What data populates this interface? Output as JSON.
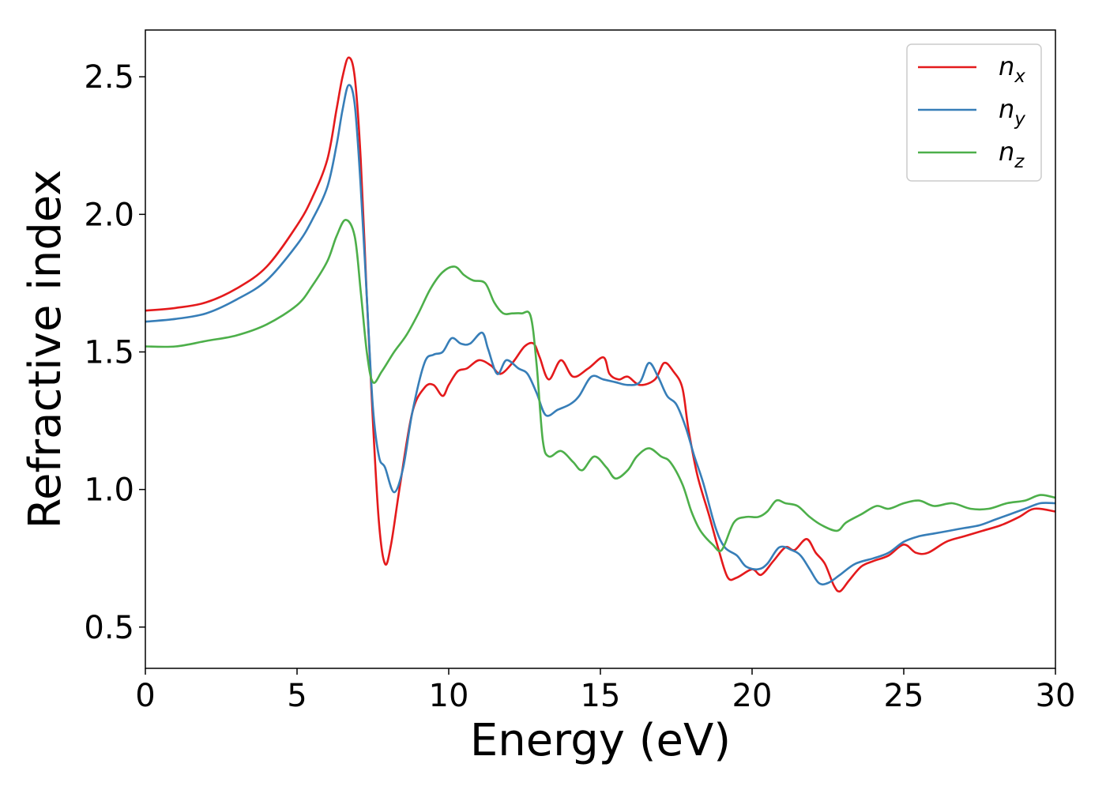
{
  "chart_data": {
    "type": "line",
    "xlabel": "Energy (eV)",
    "ylabel": "Refractive index",
    "xlim": [
      0,
      30
    ],
    "ylim": [
      0.35,
      2.67
    ],
    "xticks": [
      0,
      5,
      10,
      15,
      20,
      25,
      30
    ],
    "xtick_labels": [
      "0",
      "5",
      "10",
      "15",
      "20",
      "25",
      "30"
    ],
    "yticks": [
      0.5,
      1.0,
      1.5,
      2.0,
      2.5
    ],
    "ytick_labels": [
      "0.5",
      "1.0",
      "1.5",
      "2.0",
      "2.5"
    ],
    "grid": false,
    "legend_position": "top-right",
    "series": [
      {
        "name": "n",
        "subscript": "x",
        "color": "#e41a1c",
        "points": [
          [
            0,
            1.65
          ],
          [
            1,
            1.66
          ],
          [
            2,
            1.68
          ],
          [
            3,
            1.73
          ],
          [
            4,
            1.81
          ],
          [
            5,
            1.96
          ],
          [
            5.5,
            2.06
          ],
          [
            6,
            2.2
          ],
          [
            6.3,
            2.38
          ],
          [
            6.5,
            2.5
          ],
          [
            6.7,
            2.57
          ],
          [
            6.9,
            2.5
          ],
          [
            7.1,
            2.2
          ],
          [
            7.3,
            1.7
          ],
          [
            7.5,
            1.25
          ],
          [
            7.7,
            0.88
          ],
          [
            7.9,
            0.73
          ],
          [
            8.1,
            0.8
          ],
          [
            8.4,
            1.02
          ],
          [
            8.8,
            1.28
          ],
          [
            9.2,
            1.37
          ],
          [
            9.5,
            1.38
          ],
          [
            9.8,
            1.34
          ],
          [
            10,
            1.38
          ],
          [
            10.3,
            1.43
          ],
          [
            10.6,
            1.44
          ],
          [
            11,
            1.47
          ],
          [
            11.4,
            1.45
          ],
          [
            11.7,
            1.42
          ],
          [
            12.1,
            1.46
          ],
          [
            12.5,
            1.52
          ],
          [
            12.8,
            1.53
          ],
          [
            13,
            1.48
          ],
          [
            13.3,
            1.4
          ],
          [
            13.7,
            1.47
          ],
          [
            14.1,
            1.41
          ],
          [
            14.6,
            1.44
          ],
          [
            15.1,
            1.48
          ],
          [
            15.3,
            1.42
          ],
          [
            15.6,
            1.4
          ],
          [
            15.9,
            1.41
          ],
          [
            16.3,
            1.38
          ],
          [
            16.8,
            1.4
          ],
          [
            17.1,
            1.46
          ],
          [
            17.4,
            1.43
          ],
          [
            17.7,
            1.37
          ],
          [
            17.9,
            1.22
          ],
          [
            18.2,
            1.05
          ],
          [
            18.6,
            0.9
          ],
          [
            18.9,
            0.78
          ],
          [
            19.2,
            0.68
          ],
          [
            19.5,
            0.68
          ],
          [
            20,
            0.71
          ],
          [
            20.3,
            0.69
          ],
          [
            20.7,
            0.74
          ],
          [
            21.1,
            0.79
          ],
          [
            21.4,
            0.78
          ],
          [
            21.8,
            0.82
          ],
          [
            22.1,
            0.77
          ],
          [
            22.4,
            0.73
          ],
          [
            22.7,
            0.65
          ],
          [
            22.9,
            0.63
          ],
          [
            23.2,
            0.67
          ],
          [
            23.6,
            0.72
          ],
          [
            24,
            0.74
          ],
          [
            24.5,
            0.76
          ],
          [
            25,
            0.8
          ],
          [
            25.4,
            0.77
          ],
          [
            25.8,
            0.77
          ],
          [
            26.4,
            0.81
          ],
          [
            27,
            0.83
          ],
          [
            27.6,
            0.85
          ],
          [
            28.2,
            0.87
          ],
          [
            28.8,
            0.9
          ],
          [
            29.3,
            0.93
          ],
          [
            30,
            0.92
          ]
        ]
      },
      {
        "name": "n",
        "subscript": "y",
        "color": "#377eb8",
        "points": [
          [
            0,
            1.61
          ],
          [
            1,
            1.62
          ],
          [
            2,
            1.64
          ],
          [
            3,
            1.69
          ],
          [
            4,
            1.76
          ],
          [
            5,
            1.89
          ],
          [
            5.5,
            1.98
          ],
          [
            6,
            2.1
          ],
          [
            6.3,
            2.25
          ],
          [
            6.5,
            2.38
          ],
          [
            6.7,
            2.47
          ],
          [
            6.9,
            2.4
          ],
          [
            7.1,
            2.1
          ],
          [
            7.3,
            1.7
          ],
          [
            7.5,
            1.3
          ],
          [
            7.7,
            1.12
          ],
          [
            7.9,
            1.08
          ],
          [
            8.2,
            0.99
          ],
          [
            8.5,
            1.08
          ],
          [
            8.8,
            1.28
          ],
          [
            9.2,
            1.46
          ],
          [
            9.5,
            1.49
          ],
          [
            9.8,
            1.5
          ],
          [
            10.1,
            1.55
          ],
          [
            10.4,
            1.53
          ],
          [
            10.7,
            1.53
          ],
          [
            11.1,
            1.57
          ],
          [
            11.3,
            1.51
          ],
          [
            11.6,
            1.42
          ],
          [
            11.9,
            1.47
          ],
          [
            12.3,
            1.44
          ],
          [
            12.6,
            1.42
          ],
          [
            12.9,
            1.35
          ],
          [
            13.2,
            1.27
          ],
          [
            13.6,
            1.29
          ],
          [
            14,
            1.31
          ],
          [
            14.3,
            1.34
          ],
          [
            14.7,
            1.41
          ],
          [
            15.1,
            1.4
          ],
          [
            15.5,
            1.39
          ],
          [
            15.9,
            1.38
          ],
          [
            16.3,
            1.39
          ],
          [
            16.6,
            1.46
          ],
          [
            16.9,
            1.41
          ],
          [
            17.2,
            1.34
          ],
          [
            17.5,
            1.31
          ],
          [
            17.8,
            1.23
          ],
          [
            18.1,
            1.12
          ],
          [
            18.4,
            1.02
          ],
          [
            18.8,
            0.86
          ],
          [
            19.1,
            0.79
          ],
          [
            19.5,
            0.76
          ],
          [
            19.8,
            0.72
          ],
          [
            20.2,
            0.71
          ],
          [
            20.5,
            0.73
          ],
          [
            20.9,
            0.79
          ],
          [
            21.3,
            0.78
          ],
          [
            21.6,
            0.76
          ],
          [
            21.9,
            0.71
          ],
          [
            22.2,
            0.66
          ],
          [
            22.5,
            0.66
          ],
          [
            22.9,
            0.69
          ],
          [
            23.4,
            0.73
          ],
          [
            24,
            0.75
          ],
          [
            24.5,
            0.77
          ],
          [
            25,
            0.81
          ],
          [
            25.5,
            0.83
          ],
          [
            26,
            0.84
          ],
          [
            26.5,
            0.85
          ],
          [
            27,
            0.86
          ],
          [
            27.5,
            0.87
          ],
          [
            28,
            0.89
          ],
          [
            28.5,
            0.91
          ],
          [
            29,
            0.93
          ],
          [
            29.5,
            0.95
          ],
          [
            30,
            0.95
          ]
        ]
      },
      {
        "name": "n",
        "subscript": "z",
        "color": "#4daf4a",
        "points": [
          [
            0,
            1.52
          ],
          [
            1,
            1.52
          ],
          [
            2,
            1.54
          ],
          [
            3,
            1.56
          ],
          [
            4,
            1.6
          ],
          [
            5,
            1.67
          ],
          [
            5.5,
            1.74
          ],
          [
            6,
            1.83
          ],
          [
            6.3,
            1.92
          ],
          [
            6.6,
            1.98
          ],
          [
            6.9,
            1.92
          ],
          [
            7.1,
            1.72
          ],
          [
            7.3,
            1.5
          ],
          [
            7.5,
            1.39
          ],
          [
            7.8,
            1.43
          ],
          [
            8.2,
            1.5
          ],
          [
            8.6,
            1.56
          ],
          [
            9,
            1.64
          ],
          [
            9.4,
            1.73
          ],
          [
            9.8,
            1.79
          ],
          [
            10.2,
            1.81
          ],
          [
            10.5,
            1.78
          ],
          [
            10.8,
            1.76
          ],
          [
            11.2,
            1.75
          ],
          [
            11.5,
            1.68
          ],
          [
            11.8,
            1.64
          ],
          [
            12.1,
            1.64
          ],
          [
            12.4,
            1.64
          ],
          [
            12.7,
            1.63
          ],
          [
            12.9,
            1.45
          ],
          [
            13.1,
            1.18
          ],
          [
            13.3,
            1.12
          ],
          [
            13.7,
            1.14
          ],
          [
            14.1,
            1.1
          ],
          [
            14.4,
            1.07
          ],
          [
            14.8,
            1.12
          ],
          [
            15.2,
            1.08
          ],
          [
            15.5,
            1.04
          ],
          [
            15.9,
            1.07
          ],
          [
            16.2,
            1.12
          ],
          [
            16.6,
            1.15
          ],
          [
            17,
            1.12
          ],
          [
            17.3,
            1.1
          ],
          [
            17.7,
            1.02
          ],
          [
            18,
            0.92
          ],
          [
            18.3,
            0.85
          ],
          [
            18.7,
            0.8
          ],
          [
            19,
            0.78
          ],
          [
            19.4,
            0.88
          ],
          [
            19.8,
            0.9
          ],
          [
            20.2,
            0.9
          ],
          [
            20.5,
            0.92
          ],
          [
            20.8,
            0.96
          ],
          [
            21.1,
            0.95
          ],
          [
            21.5,
            0.94
          ],
          [
            21.9,
            0.9
          ],
          [
            22.3,
            0.87
          ],
          [
            22.8,
            0.85
          ],
          [
            23.1,
            0.88
          ],
          [
            23.6,
            0.91
          ],
          [
            24.1,
            0.94
          ],
          [
            24.5,
            0.93
          ],
          [
            25,
            0.95
          ],
          [
            25.5,
            0.96
          ],
          [
            26,
            0.94
          ],
          [
            26.6,
            0.95
          ],
          [
            27.2,
            0.93
          ],
          [
            27.8,
            0.93
          ],
          [
            28.4,
            0.95
          ],
          [
            29,
            0.96
          ],
          [
            29.5,
            0.98
          ],
          [
            30,
            0.97
          ]
        ]
      }
    ]
  }
}
